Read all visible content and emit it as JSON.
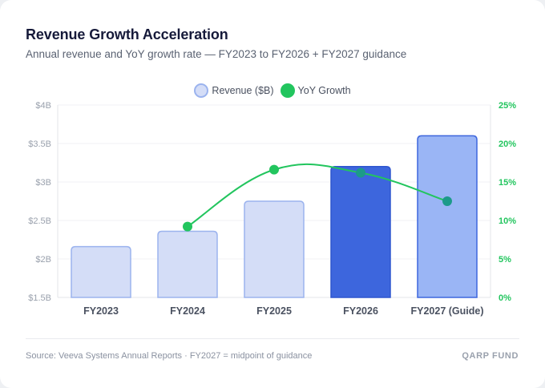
{
  "header": {
    "title": "Revenue Growth Acceleration",
    "subtitle": "Annual revenue and YoY growth rate — FY2023 to FY2026 + FY2027 guidance"
  },
  "legend": {
    "revenue_label": "Revenue ($B)",
    "growth_label": "YoY Growth"
  },
  "chart_data": {
    "type": "bar",
    "title": "Revenue Growth Acceleration",
    "categories": [
      "FY2023",
      "FY2024",
      "FY2025",
      "FY2026",
      "FY2027 (Guide)"
    ],
    "series": [
      {
        "name": "Revenue ($B)",
        "axis": "left",
        "type": "bar",
        "values": [
          2.16,
          2.36,
          2.75,
          3.2,
          3.6
        ]
      },
      {
        "name": "YoY Growth",
        "axis": "right",
        "type": "line",
        "values": [
          null,
          9.2,
          16.6,
          16.2,
          12.5
        ]
      }
    ],
    "ylim_left": [
      1.5,
      4
    ],
    "yticks_left": [
      "$1.5B",
      "$2B",
      "$2.5B",
      "$3B",
      "$3.5B",
      "$4B"
    ],
    "ylim_right": [
      0,
      25
    ],
    "yticks_right": [
      "0%",
      "5%",
      "10%",
      "15%",
      "20%",
      "25%"
    ],
    "grid": true,
    "legend_position": "top-center"
  },
  "colors": {
    "bar_light_fill": "#d4ddf7",
    "bar_light_stroke": "#9bb3ee",
    "bar_highlight_fill": "#3d66dd",
    "bar_highlight_stroke": "#2f56cf",
    "bar_guide_fill": "#9ab5f5",
    "bar_guide_stroke": "#3d66dd",
    "growth_line": "#22c55e",
    "growth_point_overlap": "#1c9a8a"
  },
  "footer": {
    "source": "Source: Veeva Systems Annual Reports · FY2027 = midpoint of guidance",
    "brand": "QARP FUND"
  }
}
